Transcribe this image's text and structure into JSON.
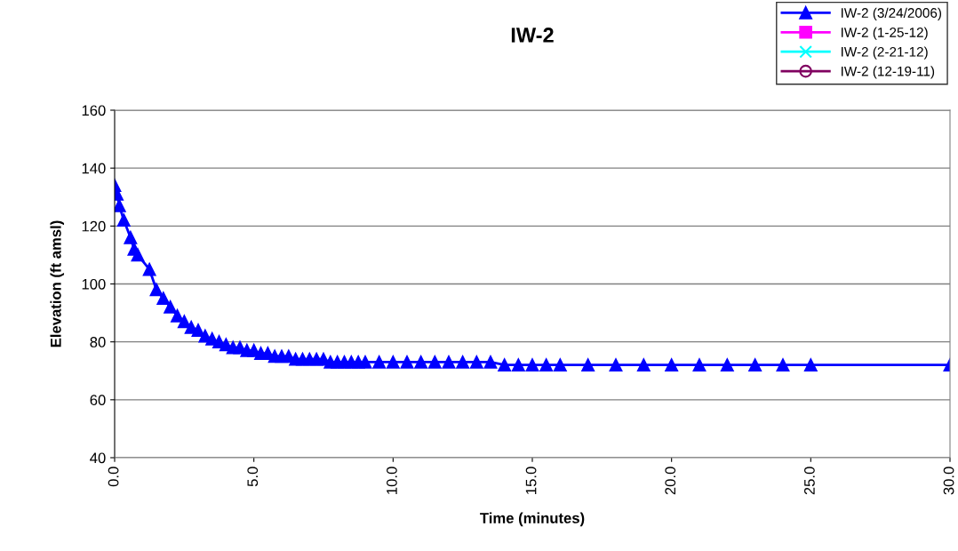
{
  "chart_data": {
    "type": "line",
    "title": "IW-2",
    "xlabel": "Time (minutes)",
    "ylabel": "Elevation (ft amsl)",
    "xlim": [
      0,
      30
    ],
    "xticks": [
      {
        "value": 0,
        "label": "0.0"
      },
      {
        "value": 5,
        "label": "5.0"
      },
      {
        "value": 10,
        "label": "10.0"
      },
      {
        "value": 15,
        "label": "15.0"
      },
      {
        "value": 20,
        "label": "20.0"
      },
      {
        "value": 25,
        "label": "25.0"
      },
      {
        "value": 30,
        "label": "30.0"
      }
    ],
    "ylim": [
      40,
      160
    ],
    "yticks": [
      40,
      60,
      80,
      100,
      120,
      140,
      160
    ],
    "grid": "y",
    "legend": "top right",
    "series": [
      {
        "name": "IW-2 (3/24/2006)",
        "color": "#0000ff",
        "marker": "triangle",
        "x": [
          0,
          0.083,
          0.167,
          0.33,
          0.57,
          0.7,
          0.83,
          1.25,
          1.5,
          1.75,
          2.0,
          2.25,
          2.5,
          2.75,
          3.0,
          3.25,
          3.5,
          3.75,
          4.0,
          4.25,
          4.5,
          4.75,
          5.0,
          5.25,
          5.5,
          5.75,
          6.0,
          6.25,
          6.5,
          6.75,
          7.0,
          7.25,
          7.5,
          7.75,
          8.0,
          8.25,
          8.5,
          8.75,
          9.0,
          9.5,
          10.0,
          10.5,
          11.0,
          11.5,
          12.0,
          12.5,
          13.0,
          13.5,
          14.0,
          14.5,
          15.0,
          15.5,
          16.0,
          17,
          18,
          19,
          20,
          21,
          22,
          23,
          24,
          25,
          30
        ],
        "values": [
          134,
          131,
          127,
          122,
          116,
          112,
          110,
          105,
          98,
          95,
          92,
          89,
          87,
          85,
          84,
          82,
          81,
          80,
          79,
          78,
          78,
          77,
          77,
          76,
          76,
          75,
          75,
          75,
          74,
          74,
          74,
          74,
          74,
          73,
          73,
          73,
          73,
          73,
          73,
          73,
          73,
          73,
          73,
          73,
          73,
          73,
          73,
          73,
          72,
          72,
          72,
          72,
          72,
          72,
          72,
          72,
          72,
          72,
          72,
          72,
          72,
          72,
          72
        ]
      },
      {
        "name": "IW-2 (1-25-12)",
        "color": "#ff00ff",
        "marker": "square"
      },
      {
        "name": "IW-2 (2-21-12)",
        "color": "#00ffff",
        "marker": "cross"
      },
      {
        "name": "IW-2 (12-19-11)",
        "color": "#800060",
        "marker": "circle"
      }
    ]
  }
}
